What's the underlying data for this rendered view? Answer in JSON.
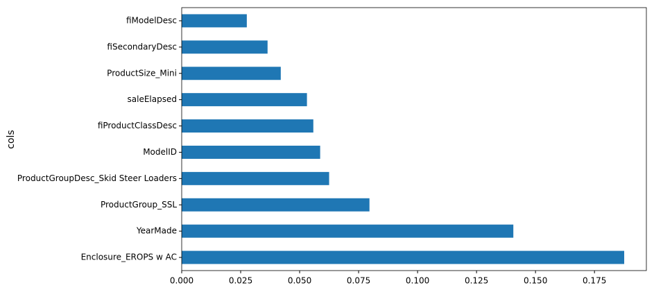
{
  "chart_data": {
    "type": "barh",
    "ylabel": "cols",
    "categories": [
      "Enclosure_EROPS w AC",
      "YearMade",
      "ProductGroup_SSL",
      "ProductGroupDesc_Skid Steer Loaders",
      "ModelID",
      "fiProductClassDesc",
      "saleElapsed",
      "ProductSize_Mini",
      "fiSecondaryDesc",
      "fiModelDesc"
    ],
    "values": [
      0.1876,
      0.1406,
      0.0796,
      0.0625,
      0.0587,
      0.0558,
      0.0531,
      0.042,
      0.0364,
      0.0276
    ],
    "color": "#1f77b4",
    "xlim": [
      0,
      0.197
    ],
    "xticks": [
      {
        "value": 0,
        "label": "0.000"
      },
      {
        "value": 0.025,
        "label": "0.025"
      },
      {
        "value": 0.05,
        "label": "0.050"
      },
      {
        "value": 0.075,
        "label": "0.075"
      },
      {
        "value": 0.1,
        "label": "0.100"
      },
      {
        "value": 0.125,
        "label": "0.125"
      },
      {
        "value": 0.15,
        "label": "0.150"
      },
      {
        "value": 0.175,
        "label": "0.175"
      }
    ]
  }
}
